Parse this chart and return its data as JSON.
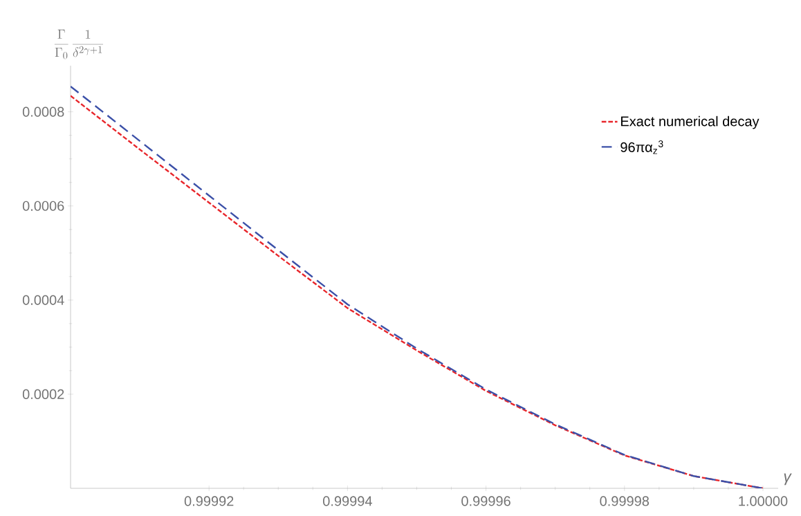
{
  "chart_data": {
    "type": "line",
    "xlabel": "γ",
    "ylabel": "\\frac{\\Gamma}{\\Gamma_0}\\,\\frac{1}{\\delta^{2\\gamma+1}}",
    "x": [
      0.9999,
      0.99991,
      0.99992,
      0.99993,
      0.99994,
      0.99995,
      0.99996,
      0.99997,
      0.99998,
      0.99999,
      1.0
    ],
    "series": [
      {
        "name": "Exact numerical decay",
        "color": "#e8262b",
        "line_style": "dotted",
        "values": [
          0.000834,
          0.00072,
          0.000607,
          0.000494,
          0.000383,
          0.000293,
          0.000207,
          0.000134,
          7e-05,
          2.6e-05,
          0.0
        ]
      },
      {
        "name": "96πα$_{z}$$^{3}$",
        "color": "#3b50a8",
        "line_style": "dashed",
        "values": [
          0.000854,
          0.000738,
          0.000622,
          0.000506,
          0.000391,
          0.000297,
          0.00021,
          0.000136,
          7.1e-05,
          2.6e-05,
          0.0
        ]
      }
    ],
    "xlim": [
      0.9999,
      1.0000022
    ],
    "ylim": [
      0,
      0.000898
    ],
    "xticks": [
      {
        "value": 0.99992,
        "label": "0.99992"
      },
      {
        "value": 0.99994,
        "label": "0.99994"
      },
      {
        "value": 0.99996,
        "label": "0.99996"
      },
      {
        "value": 0.99998,
        "label": "0.99998"
      },
      {
        "value": 1.0,
        "label": "1.00000"
      }
    ],
    "yticks": [
      {
        "value": 0.0002,
        "label": "0.0002"
      },
      {
        "value": 0.0004,
        "label": "0.0004"
      },
      {
        "value": 0.0006,
        "label": "0.0006"
      },
      {
        "value": 0.0008,
        "label": "0.0008"
      }
    ],
    "grid": false,
    "legend": "top right"
  }
}
